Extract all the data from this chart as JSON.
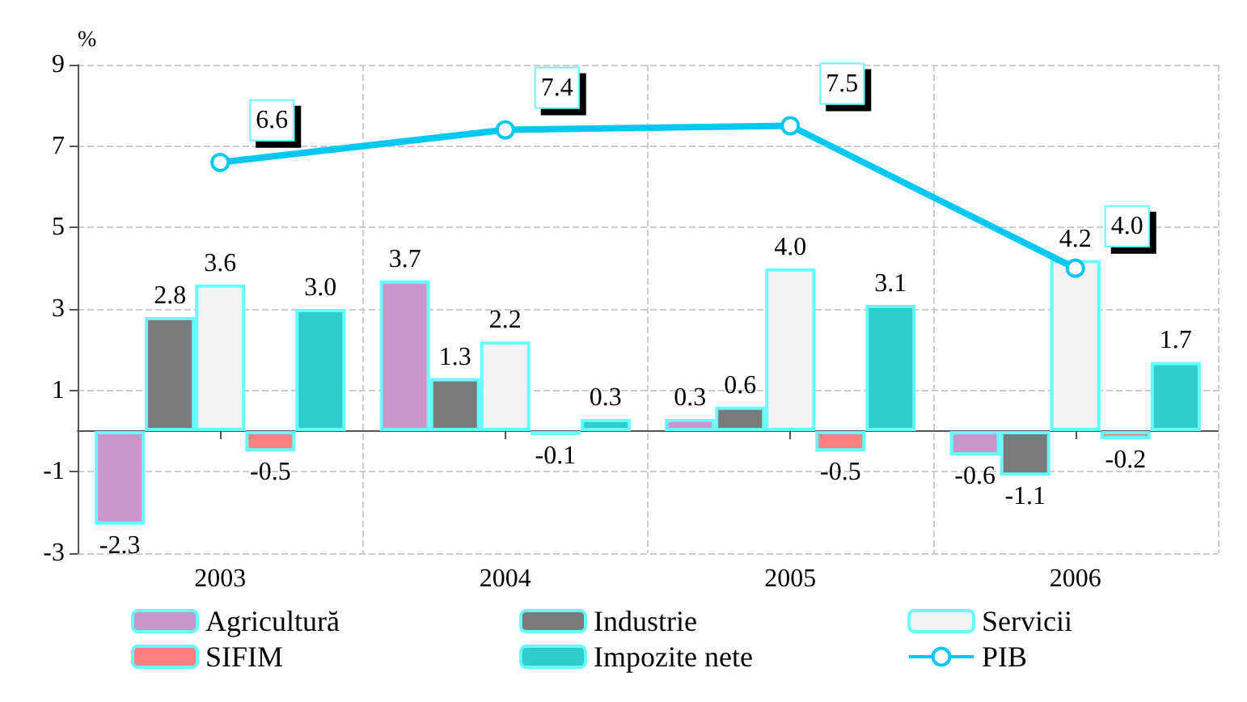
{
  "chart_data": {
    "type": "bar",
    "ylabel": "%",
    "categories": [
      "2003",
      "2004",
      "2005",
      "2006"
    ],
    "series": [
      {
        "name": "Agricultură",
        "color": "#c896c8",
        "values": [
          -2.3,
          3.7,
          0.3,
          -0.6
        ],
        "value_labels": [
          "-2.3",
          "3.7",
          "0.3",
          "-0.6"
        ]
      },
      {
        "name": "Industrie",
        "color": "#7a7a7a",
        "values": [
          2.8,
          1.3,
          0.6,
          -1.1
        ],
        "value_labels": [
          "2.8",
          "1.3",
          "0.6",
          "-1.1"
        ]
      },
      {
        "name": "Servicii",
        "color": "#f2f2f2",
        "values": [
          3.6,
          2.2,
          4.0,
          4.2
        ],
        "value_labels": [
          "3.6",
          "2.2",
          "4.0",
          "4.2"
        ]
      },
      {
        "name": "SIFIM",
        "color": "#ff8080",
        "values": [
          -0.5,
          -0.1,
          -0.5,
          -0.2
        ],
        "value_labels": [
          "-0.5",
          "-0.1",
          "-0.5",
          "-0.2"
        ]
      },
      {
        "name": "Impozite nete",
        "color": "#33cccc",
        "values": [
          3.0,
          0.3,
          3.1,
          1.7
        ],
        "value_labels": [
          "3.0",
          "0.3",
          "3.1",
          "1.7"
        ]
      },
      {
        "name": "PIB",
        "type": "line",
        "color": "#00c8f0",
        "values": [
          6.6,
          7.4,
          7.5,
          4.0
        ],
        "value_labels": [
          "6.6",
          "7.4",
          "7.5",
          "4.0"
        ]
      }
    ],
    "ylim": [
      -3,
      9
    ],
    "yticks": [
      -3,
      -1,
      1,
      3,
      5,
      7,
      9
    ],
    "grid": true,
    "legend": "bottom",
    "marker": "circle"
  }
}
